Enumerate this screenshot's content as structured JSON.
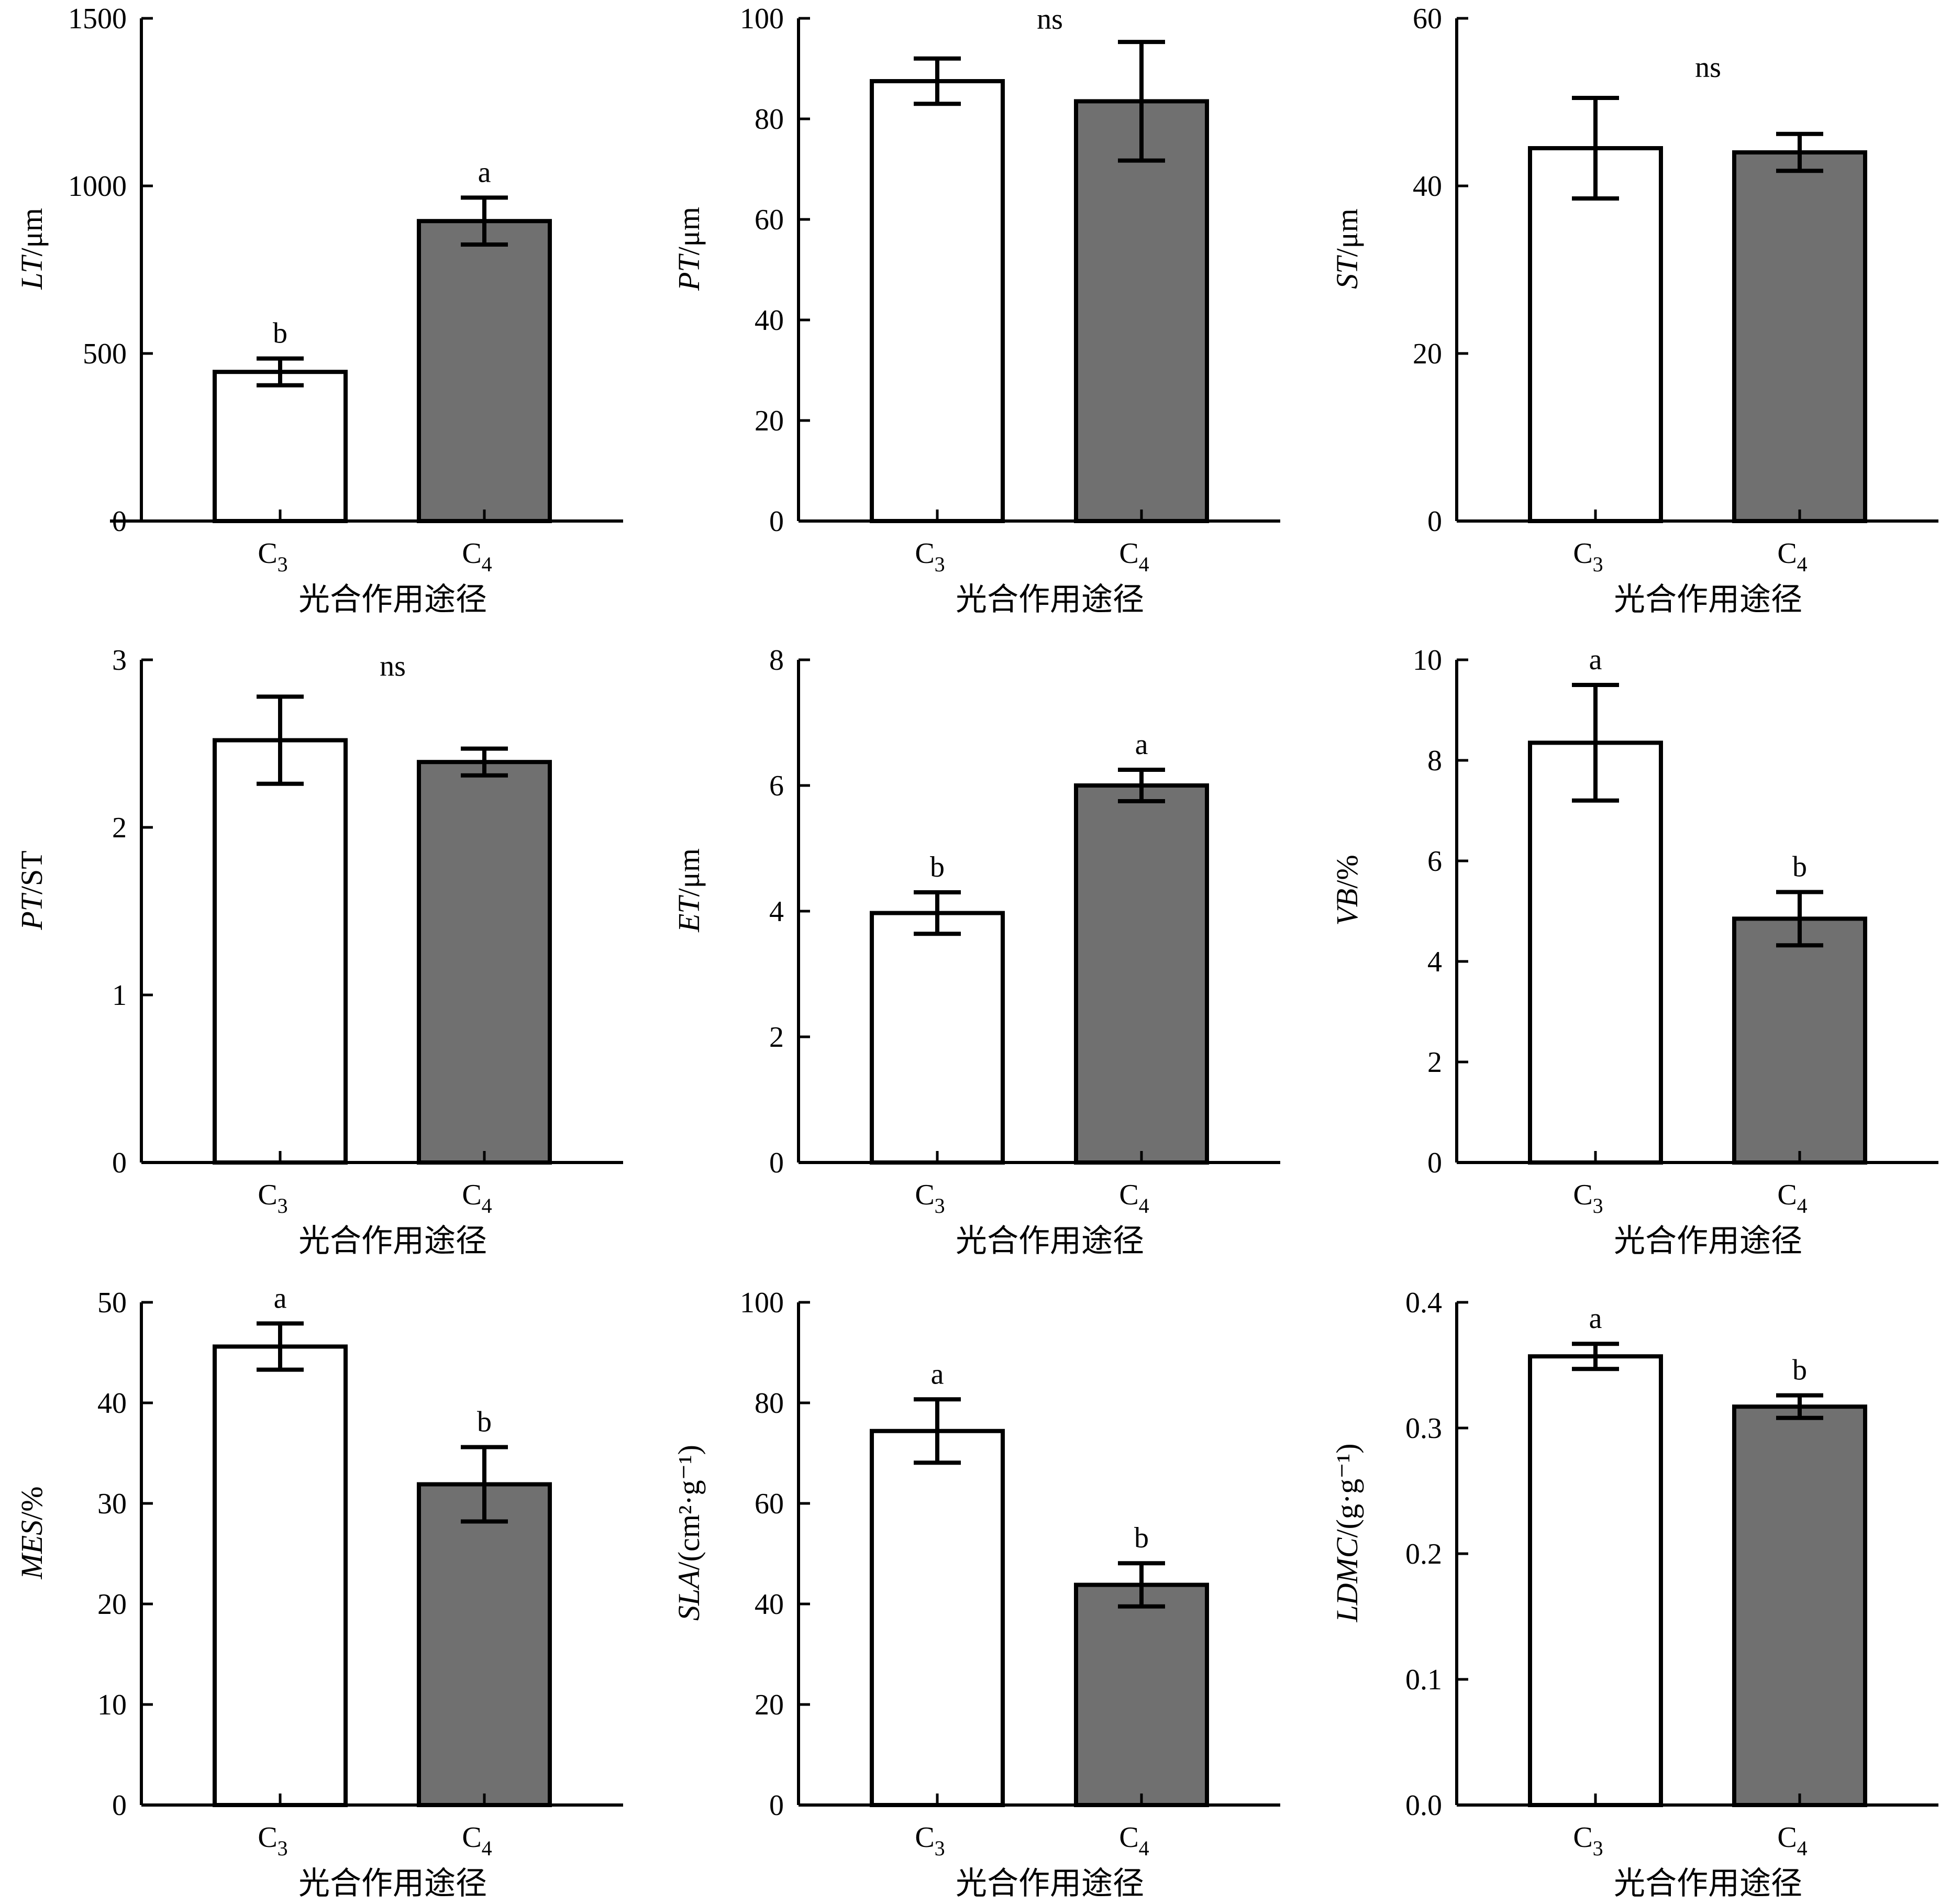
{
  "chart_data": [
    {
      "type": "bar",
      "categories": [
        "C3",
        "C4"
      ],
      "xlabel": "光合作用途径",
      "ylabel_italic": "LT",
      "ylabel_rest": "/μm",
      "ylim": [
        0,
        1500
      ],
      "yticks": [
        0,
        500,
        1000,
        1500
      ],
      "values": [
        445,
        895
      ],
      "errors": [
        40,
        70
      ],
      "sig_labels": [
        "b",
        "a"
      ],
      "colors": [
        "#ffffff",
        "#707070"
      ]
    },
    {
      "type": "bar",
      "categories": [
        "C3",
        "C4"
      ],
      "xlabel": "光合作用途径",
      "ylabel_italic": "PT",
      "ylabel_rest": "/μm",
      "ylim": [
        0,
        100
      ],
      "yticks": [
        0,
        20,
        40,
        60,
        80,
        100
      ],
      "values": [
        87.5,
        83.5
      ],
      "errors": [
        4.5,
        11.8
      ],
      "sig_text": "ns",
      "colors": [
        "#ffffff",
        "#707070"
      ]
    },
    {
      "type": "bar",
      "categories": [
        "C3",
        "C4"
      ],
      "xlabel": "光合作用途径",
      "ylabel_italic": "ST",
      "ylabel_rest": "/μm",
      "ylim": [
        0,
        60
      ],
      "yticks": [
        0,
        20,
        40,
        60
      ],
      "values": [
        44.5,
        44.0
      ],
      "errors": [
        6.0,
        2.2
      ],
      "sig_text": "ns",
      "colors": [
        "#ffffff",
        "#707070"
      ]
    },
    {
      "type": "bar",
      "categories": [
        "C3",
        "C4"
      ],
      "xlabel": "光合作用途径",
      "ylabel_italic": "PT",
      "ylabel_rest": "/ST",
      "ylim": [
        0,
        3
      ],
      "yticks": [
        0,
        1,
        2,
        3
      ],
      "values": [
        2.52,
        2.39
      ],
      "errors": [
        0.26,
        0.08
      ],
      "sig_text": "ns",
      "colors": [
        "#ffffff",
        "#707070"
      ]
    },
    {
      "type": "bar",
      "categories": [
        "C3",
        "C4"
      ],
      "xlabel": "光合作用途径",
      "ylabel_italic": "ET",
      "ylabel_rest": "/μm",
      "ylim": [
        0,
        8
      ],
      "yticks": [
        0,
        2,
        4,
        6,
        8
      ],
      "values": [
        3.97,
        6.0
      ],
      "errors": [
        0.33,
        0.25
      ],
      "sig_labels": [
        "b",
        "a"
      ],
      "colors": [
        "#ffffff",
        "#707070"
      ]
    },
    {
      "type": "bar",
      "categories": [
        "C3",
        "C4"
      ],
      "xlabel": "光合作用途径",
      "ylabel_italic": "VB",
      "ylabel_rest": "/%",
      "ylim": [
        0,
        10
      ],
      "yticks": [
        0,
        2,
        4,
        6,
        8,
        10
      ],
      "values": [
        8.35,
        4.85
      ],
      "errors": [
        1.15,
        0.53
      ],
      "sig_labels": [
        "a",
        "b"
      ],
      "colors": [
        "#ffffff",
        "#707070"
      ]
    },
    {
      "type": "bar",
      "categories": [
        "C3",
        "C4"
      ],
      "xlabel": "光合作用途径",
      "ylabel_italic": "MES",
      "ylabel_rest": "/%",
      "ylim": [
        0,
        50
      ],
      "yticks": [
        0,
        10,
        20,
        30,
        40,
        50
      ],
      "values": [
        45.6,
        31.9
      ],
      "errors": [
        2.3,
        3.7
      ],
      "sig_labels": [
        "a",
        "b"
      ],
      "colors": [
        "#ffffff",
        "#707070"
      ]
    },
    {
      "type": "bar",
      "categories": [
        "C3",
        "C4"
      ],
      "xlabel": "光合作用途径",
      "ylabel_italic": "SLA",
      "ylabel_rest": "/(cm²·g⁻¹)",
      "ylim": [
        0,
        100
      ],
      "yticks": [
        0,
        20,
        40,
        60,
        80,
        100
      ],
      "values": [
        74.4,
        43.8
      ],
      "errors": [
        6.3,
        4.3
      ],
      "sig_labels": [
        "a",
        "b"
      ],
      "colors": [
        "#ffffff",
        "#707070"
      ]
    },
    {
      "type": "bar",
      "categories": [
        "C3",
        "C4"
      ],
      "xlabel": "光合作用途径",
      "ylabel_italic": "LDMC",
      "ylabel_rest": "/(g·g⁻¹)",
      "ylim": [
        0,
        0.4
      ],
      "yticks": [
        0.0,
        0.1,
        0.2,
        0.3,
        0.4
      ],
      "ytick_decimals": 1,
      "values": [
        0.357,
        0.317
      ],
      "errors": [
        0.01,
        0.009
      ],
      "sig_labels": [
        "a",
        "b"
      ],
      "colors": [
        "#ffffff",
        "#707070"
      ]
    }
  ]
}
